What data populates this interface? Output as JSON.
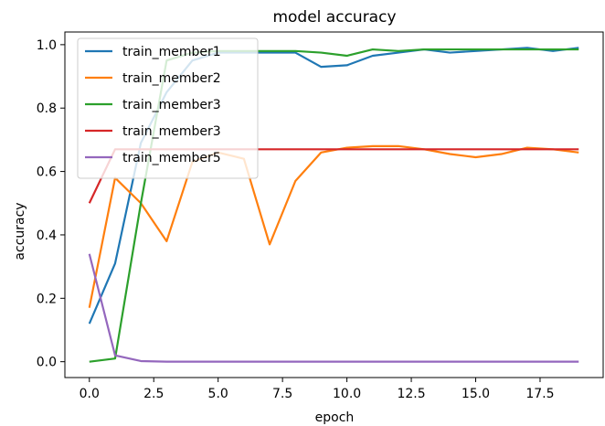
{
  "chart_data": {
    "type": "line",
    "title": "model accuracy",
    "xlabel": "epoch",
    "ylabel": "accuracy",
    "xlim": [
      -0.95,
      19.95
    ],
    "ylim": [
      -0.05,
      1.04
    ],
    "xticks": [
      0.0,
      2.5,
      5.0,
      7.5,
      10.0,
      12.5,
      15.0,
      17.5
    ],
    "xtick_labels": [
      "0.0",
      "2.5",
      "5.0",
      "7.5",
      "10.0",
      "12.5",
      "15.0",
      "17.5"
    ],
    "yticks": [
      0.0,
      0.2,
      0.4,
      0.6,
      0.8,
      1.0
    ],
    "ytick_labels": [
      "0.0",
      "0.2",
      "0.4",
      "0.6",
      "0.8",
      "1.0"
    ],
    "grid": false,
    "legend_position": "upper-left",
    "x": [
      0,
      1,
      2,
      3,
      4,
      5,
      6,
      7,
      8,
      9,
      10,
      11,
      12,
      13,
      14,
      15,
      16,
      17,
      18,
      19
    ],
    "series": [
      {
        "name": "train_member1",
        "color": "#1f77b4",
        "values": [
          0.12,
          0.31,
          0.69,
          0.85,
          0.95,
          0.975,
          0.975,
          0.975,
          0.975,
          0.93,
          0.935,
          0.965,
          0.975,
          0.985,
          0.975,
          0.98,
          0.985,
          0.99,
          0.98,
          0.99
        ]
      },
      {
        "name": "train_member2",
        "color": "#ff7f0e",
        "values": [
          0.17,
          0.58,
          0.5,
          0.38,
          0.63,
          0.66,
          0.64,
          0.37,
          0.57,
          0.66,
          0.675,
          0.68,
          0.68,
          0.67,
          0.655,
          0.645,
          0.655,
          0.675,
          0.67,
          0.66
        ]
      },
      {
        "name": "train_member3",
        "color": "#2ca02c",
        "values": [
          0.0,
          0.01,
          0.5,
          0.95,
          0.975,
          0.98,
          0.98,
          0.98,
          0.98,
          0.975,
          0.965,
          0.985,
          0.98,
          0.985,
          0.985,
          0.985,
          0.985,
          0.985,
          0.985,
          0.985
        ]
      },
      {
        "name": "train_member3",
        "color": "#d62728",
        "values": [
          0.5,
          0.67,
          0.67,
          0.67,
          0.67,
          0.67,
          0.67,
          0.67,
          0.67,
          0.67,
          0.67,
          0.67,
          0.67,
          0.67,
          0.67,
          0.67,
          0.67,
          0.67,
          0.67,
          0.67
        ]
      },
      {
        "name": "train_member5",
        "color": "#9467bd",
        "values": [
          0.34,
          0.02,
          0.002,
          0.0,
          0.0,
          0.0,
          0.0,
          0.0,
          0.0,
          0.0,
          0.0,
          0.0,
          0.0,
          0.0,
          0.0,
          0.0,
          0.0,
          0.0,
          0.0,
          0.0
        ]
      }
    ]
  }
}
